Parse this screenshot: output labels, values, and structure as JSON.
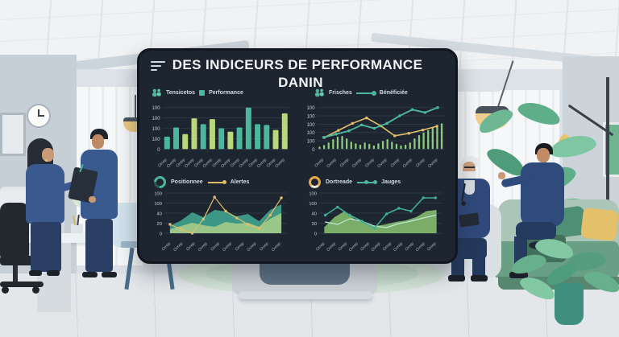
{
  "dashboard": {
    "title_line1": "DES INDICEURS DE PERFORMANCE",
    "title_line2": "DANIN",
    "menu_icon": "hamburger-menu",
    "legend_left": {
      "icon": "people-icon",
      "item1": "Tensicetos",
      "swatch_class": "hswatch square",
      "item2": "Performance"
    },
    "legend_right": {
      "icon": "people-icon",
      "item1": "Frisches",
      "swatch_class": "hswatch linedot",
      "item2": "Bénéficiée"
    },
    "colors": {
      "screen_bg": "#1d2531",
      "teal": "#4cb79c",
      "light_green": "#b9d77b",
      "yellow": "#e2bd68",
      "grid": "#333d4a",
      "tick_text": "#c3ccd6"
    }
  },
  "chart_data": [
    {
      "type": "bar",
      "yticks": [
        "100",
        "100",
        "100",
        "100",
        "0"
      ],
      "xlabels": [
        "Orrep",
        "Ovrep",
        "Orrep",
        "Ovrep",
        "Orrep",
        "Ovrep",
        "Orrep",
        "Ovrep",
        "Orrep",
        "Ovrep",
        "Orrep",
        "Ovrep",
        "Orrep",
        "Ovrep"
      ],
      "series": [
        {
          "kind": "bar",
          "values": [
            30,
            52,
            36,
            74,
            60,
            72,
            50,
            42,
            52,
            100,
            60,
            58,
            46,
            86
          ],
          "colors": [
            "#4cb79c",
            "#4cb79c",
            "#b9d77b",
            "#b9d77b",
            "#4cb79c",
            "#b9d77b",
            "#4cb79c",
            "#b9d77b",
            "#4cb79c",
            "#4cb79c",
            "#4cb79c",
            "#4cb79c",
            "#b9d77b",
            "#b9d77b"
          ]
        }
      ]
    },
    {
      "type": "combo",
      "yticks": [
        "100",
        "100",
        "100",
        "100",
        "100",
        "0"
      ],
      "xlabels": [
        "Orrep",
        "Ovrep",
        "Orrep",
        "Ovrep",
        "Orrep",
        "Ovrep",
        "Orrep",
        "Ovrep",
        "Orrep",
        "Ovrep"
      ],
      "series": [
        {
          "kind": "bar",
          "color": "#8fca7d",
          "barWidth": 2.2,
          "values": [
            6,
            10,
            16,
            24,
            30,
            32,
            26,
            18,
            14,
            11,
            16,
            13,
            9,
            14,
            20,
            24,
            18,
            13,
            9,
            11,
            16,
            26,
            34,
            40,
            46,
            52,
            58,
            62
          ]
        },
        {
          "kind": "line",
          "color": "#e2bd68",
          "dots": true,
          "width": 1.6,
          "values": [
            28,
            45,
            62,
            75,
            56,
            32,
            38,
            46,
            55
          ]
        },
        {
          "kind": "line",
          "color": "#4cb79c",
          "dots": true,
          "width": 1.8,
          "values": [
            28,
            36,
            44,
            58,
            50,
            62,
            80,
            95,
            88,
            100
          ]
        }
      ]
    },
    {
      "type": "area",
      "legend": {
        "icon": "donut-gauge-icon",
        "icon_class": "picon teal",
        "item1": "Positionnee",
        "swatch_class": "lswatch yline",
        "item2": "Alertes"
      },
      "yticks": [
        "100",
        "100",
        "40",
        "20",
        "0"
      ],
      "xlabels": [
        "Orrep",
        "Ovrep",
        "Orrep",
        "Ovrep",
        "Orrep",
        "Ovrep",
        "Orrep",
        "Ovrep",
        "Orrep",
        "Ovrep"
      ],
      "series": [
        {
          "kind": "area",
          "color": "#3f9d8a",
          "opacity": 0.95,
          "values": [
            18,
            32,
            52,
            40,
            58,
            54,
            42,
            48,
            30,
            58,
            72
          ]
        },
        {
          "kind": "area",
          "color": "#a8cf8a",
          "opacity": 0.85,
          "values": [
            10,
            18,
            26,
            20,
            16,
            28,
            24,
            26,
            16,
            36,
            50
          ]
        },
        {
          "kind": "line",
          "color": "#e2bd68",
          "dots": true,
          "width": 1.2,
          "values": [
            22,
            10,
            0,
            35,
            90,
            55,
            38,
            22,
            12,
            45,
            88
          ]
        }
      ]
    },
    {
      "type": "area-line",
      "legend": {
        "icon": "donut-gauge-icon",
        "icon_class": "picon orange",
        "item1": "Dortreade",
        "swatch_class": "lswatch tline",
        "item2": "Jauges"
      },
      "yticks": [
        "100",
        "100",
        "40",
        "30",
        "0"
      ],
      "xlabels": [
        "Orrep",
        "Ovrep",
        "Orrep",
        "Ovrep",
        "Orrep",
        "Ovrep",
        "Orrep",
        "Ovrep",
        "Orrep",
        "Ovrep",
        "Orrep"
      ],
      "series": [
        {
          "kind": "area",
          "color": "#7fb56b",
          "opacity": 0.95,
          "values": [
            15,
            40,
            55,
            35,
            25,
            18,
            22,
            28,
            32,
            40,
            55,
            58
          ]
        },
        {
          "kind": "line",
          "color": "#bfe8d8",
          "dots": false,
          "width": 1.2,
          "values": [
            28,
            22,
            36,
            30,
            18,
            14,
            24,
            30,
            38,
            45
          ]
        },
        {
          "kind": "line",
          "color": "#3fae96",
          "dots": true,
          "width": 1.6,
          "values": [
            45,
            65,
            45,
            30,
            12,
            48,
            62,
            55,
            88,
            88
          ]
        }
      ]
    }
  ]
}
